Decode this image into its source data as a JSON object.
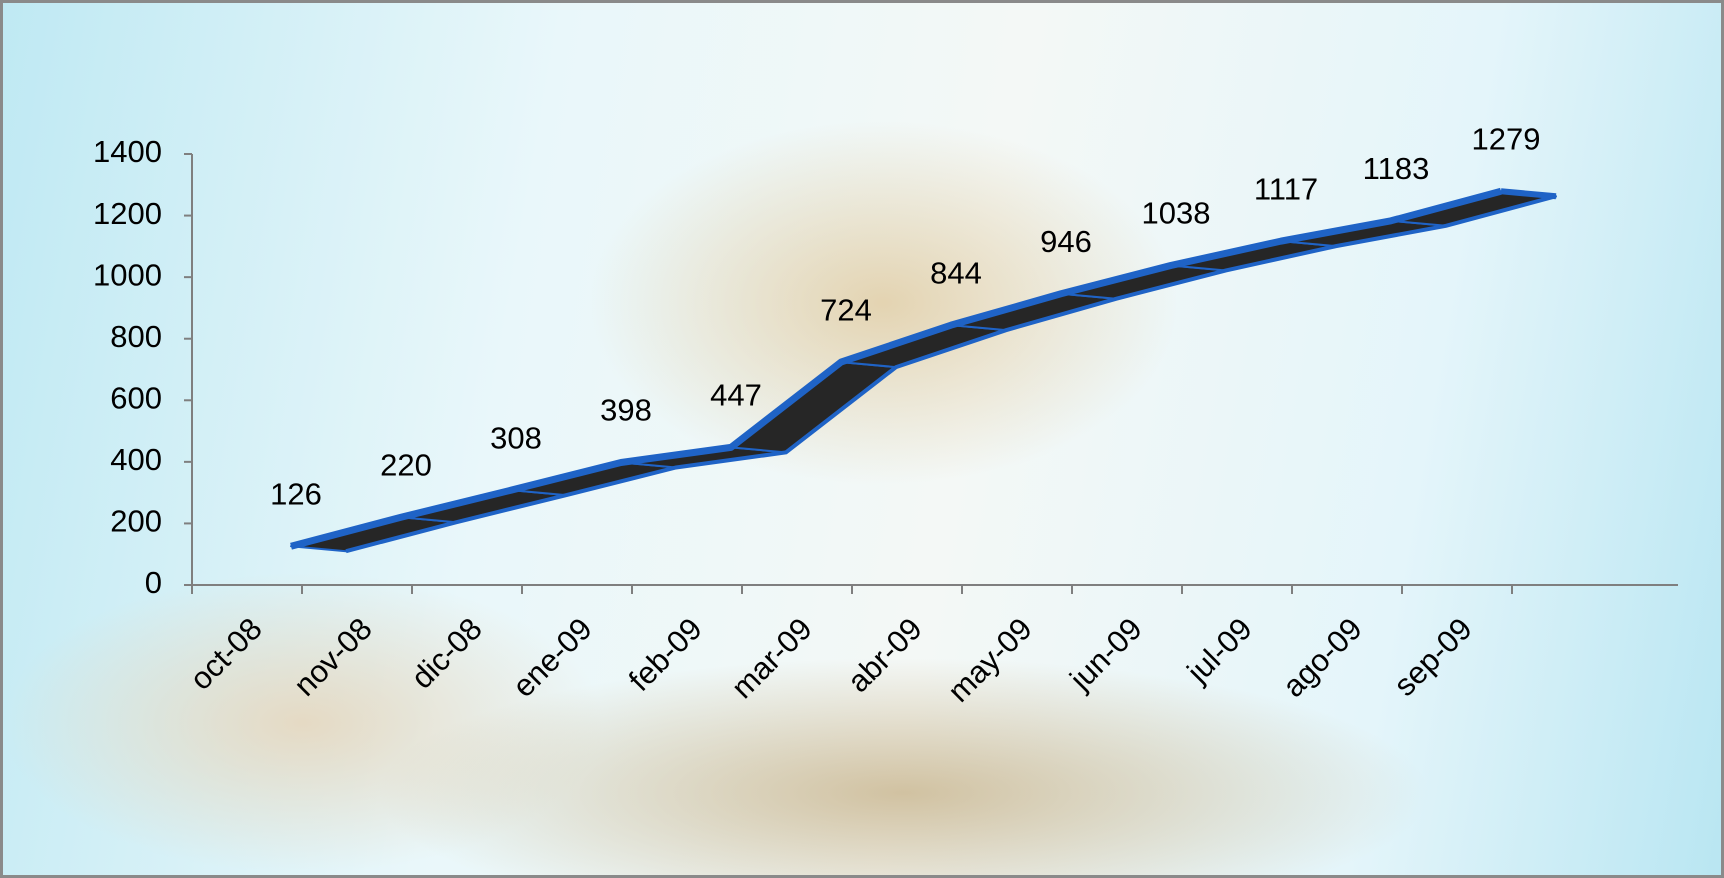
{
  "chart_data": {
    "type": "line",
    "categories": [
      "oct-08",
      "nov-08",
      "dic-08",
      "ene-09",
      "feb-09",
      "mar-09",
      "abr-09",
      "may-09",
      "jun-09",
      "jul-09",
      "ago-09",
      "sep-09"
    ],
    "values": [
      126,
      220,
      308,
      398,
      447,
      724,
      844,
      946,
      1038,
      1117,
      1183,
      1279
    ],
    "color": "#1f63c6",
    "ylim": [
      0,
      1400
    ],
    "yticks": [
      0,
      200,
      400,
      600,
      800,
      1000,
      1200,
      1400
    ]
  }
}
